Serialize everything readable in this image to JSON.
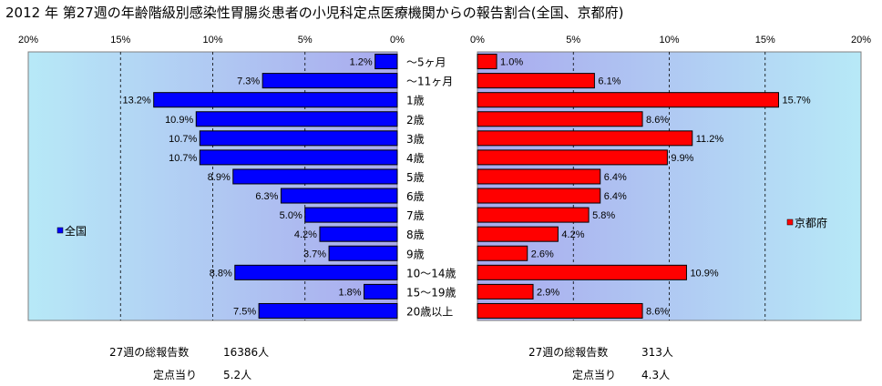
{
  "title": "2012 年 第27週の年齢階級別感染性胃腸炎患者の小児科定点医療機関からの報告割合(全国、京都府)",
  "colors": {
    "national": "#0000ff",
    "kyoto": "#ff0000",
    "plot_bg_outer": "#b7e9f7",
    "plot_bg_inner": "#a9a9ee"
  },
  "chart_data": [
    {
      "type": "bar",
      "orientation": "horizontal",
      "direction": "right-to-left",
      "categories": [
        "～5ヶ月",
        "～11ヶ月",
        "1歳",
        "2歳",
        "3歳",
        "4歳",
        "5歳",
        "6歳",
        "7歳",
        "8歳",
        "9歳",
        "10～14歳",
        "15～19歳",
        "20歳以上"
      ],
      "series": [
        {
          "name": "全国",
          "values": [
            1.2,
            7.3,
            13.2,
            10.9,
            10.7,
            10.7,
            8.9,
            6.3,
            5.0,
            4.2,
            3.7,
            8.8,
            1.8,
            7.5
          ]
        }
      ],
      "data_labels": [
        "1.2%",
        "7.3%",
        "13.2%",
        "10.9%",
        "10.7%",
        "10.7%",
        "8.9%",
        "6.3%",
        "5.0%",
        "4.2%",
        "3.7%",
        "8.8%",
        "1.8%",
        "7.5%"
      ],
      "xlim": [
        0,
        20
      ],
      "ticks": [
        "20%",
        "15%",
        "10%",
        "5%",
        "0%"
      ],
      "legend": "left",
      "grid": true
    },
    {
      "type": "bar",
      "orientation": "horizontal",
      "direction": "left-to-right",
      "categories": [
        "～5ヶ月",
        "～11ヶ月",
        "1歳",
        "2歳",
        "3歳",
        "4歳",
        "5歳",
        "6歳",
        "7歳",
        "8歳",
        "9歳",
        "10～14歳",
        "15～19歳",
        "20歳以上"
      ],
      "series": [
        {
          "name": "京都府",
          "values": [
            1.0,
            6.1,
            15.7,
            8.6,
            11.2,
            9.9,
            6.4,
            6.4,
            5.8,
            4.2,
            2.6,
            10.9,
            2.9,
            8.6
          ]
        }
      ],
      "data_labels": [
        "1.0%",
        "6.1%",
        "15.7%",
        "8.6%",
        "11.2%",
        "9.9%",
        "6.4%",
        "6.4%",
        "5.8%",
        "4.2%",
        "2.6%",
        "10.9%",
        "2.9%",
        "8.6%"
      ],
      "xlim": [
        0,
        20
      ],
      "ticks": [
        "0%",
        "5%",
        "10%",
        "15%",
        "20%"
      ],
      "legend": "right",
      "grid": true
    }
  ],
  "footer": {
    "national": {
      "total_label": "27週の総報告数",
      "total_value": "16386人",
      "per_label": "定点当り",
      "per_value": "5.2人"
    },
    "kyoto": {
      "total_label": "27週の総報告数",
      "total_value": "313人",
      "per_label": "定点当り",
      "per_value": "4.3人"
    }
  }
}
